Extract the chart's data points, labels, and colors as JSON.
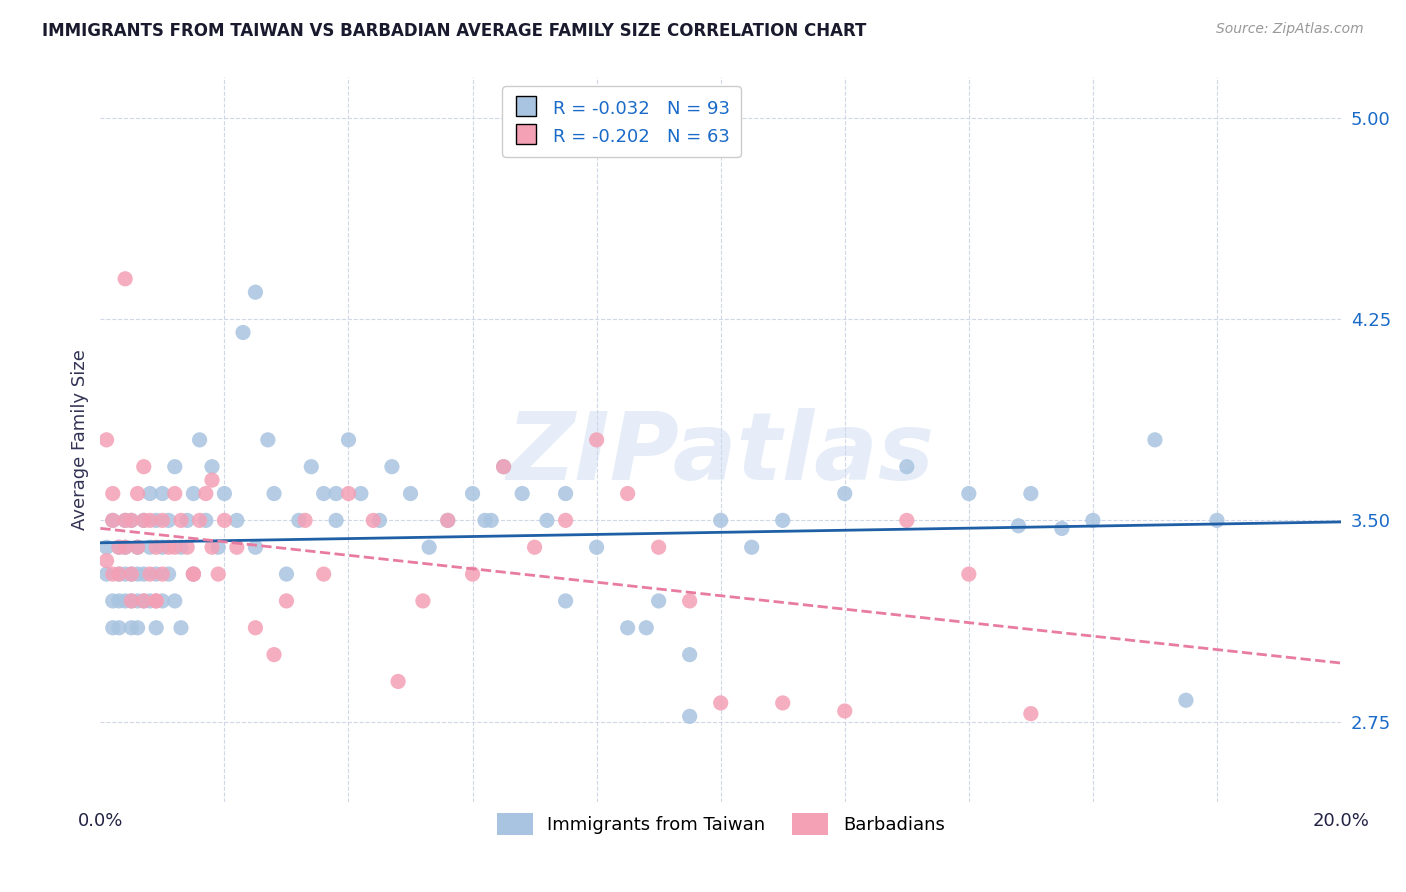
{
  "title": "IMMIGRANTS FROM TAIWAN VS BARBADIAN AVERAGE FAMILY SIZE CORRELATION CHART",
  "source": "Source: ZipAtlas.com",
  "ylabel": "Average Family Size",
  "xlim": [
    0.0,
    0.2
  ],
  "ylim": [
    2.45,
    5.15
  ],
  "yticks": [
    2.75,
    3.5,
    4.25,
    5.0
  ],
  "taiwan_R": -0.032,
  "taiwan_N": 93,
  "barbadian_R": -0.202,
  "barbadian_N": 63,
  "taiwan_color": "#a8c4e0",
  "barbadian_color": "#f4a0b5",
  "taiwan_line_color": "#1f5fa6",
  "barbadian_line_color": "#e87ca0",
  "background_color": "#ffffff",
  "grid_color": "#d0d8e8",
  "watermark": "ZIPatlas",
  "taiwan_x": [
    0.001,
    0.001,
    0.002,
    0.002,
    0.002,
    0.003,
    0.003,
    0.003,
    0.003,
    0.004,
    0.004,
    0.004,
    0.004,
    0.005,
    0.005,
    0.005,
    0.005,
    0.006,
    0.006,
    0.006,
    0.006,
    0.007,
    0.007,
    0.007,
    0.008,
    0.008,
    0.008,
    0.009,
    0.009,
    0.009,
    0.01,
    0.01,
    0.01,
    0.011,
    0.011,
    0.012,
    0.012,
    0.013,
    0.013,
    0.014,
    0.015,
    0.015,
    0.016,
    0.017,
    0.018,
    0.019,
    0.02,
    0.022,
    0.023,
    0.025,
    0.027,
    0.028,
    0.03,
    0.032,
    0.034,
    0.036,
    0.038,
    0.04,
    0.042,
    0.045,
    0.047,
    0.05,
    0.053,
    0.056,
    0.06,
    0.063,
    0.065,
    0.068,
    0.072,
    0.075,
    0.08,
    0.085,
    0.09,
    0.095,
    0.1,
    0.105,
    0.11,
    0.12,
    0.13,
    0.14,
    0.15,
    0.16,
    0.17,
    0.175,
    0.18,
    0.148,
    0.155,
    0.062,
    0.075,
    0.088,
    0.095,
    0.025,
    0.038
  ],
  "taiwan_y": [
    3.3,
    3.4,
    3.2,
    3.5,
    3.1,
    3.3,
    3.4,
    3.2,
    3.1,
    3.3,
    3.5,
    3.2,
    3.4,
    3.3,
    3.1,
    3.5,
    3.2,
    3.4,
    3.3,
    3.2,
    3.1,
    3.5,
    3.3,
    3.2,
    3.4,
    3.6,
    3.2,
    3.5,
    3.3,
    3.1,
    3.4,
    3.2,
    3.6,
    3.3,
    3.5,
    3.7,
    3.2,
    3.4,
    3.1,
    3.5,
    3.3,
    3.6,
    3.8,
    3.5,
    3.7,
    3.4,
    3.6,
    3.5,
    4.2,
    3.4,
    3.8,
    3.6,
    3.3,
    3.5,
    3.7,
    3.6,
    3.5,
    3.8,
    3.6,
    3.5,
    3.7,
    3.6,
    3.4,
    3.5,
    3.6,
    3.5,
    3.7,
    3.6,
    3.5,
    3.6,
    3.4,
    3.1,
    3.2,
    3.0,
    3.5,
    3.4,
    3.5,
    3.6,
    3.7,
    3.6,
    3.6,
    3.5,
    3.8,
    2.83,
    3.5,
    3.48,
    3.47,
    3.5,
    3.2,
    3.1,
    2.77,
    4.35,
    3.6
  ],
  "barbadian_x": [
    0.001,
    0.001,
    0.002,
    0.002,
    0.002,
    0.003,
    0.003,
    0.004,
    0.004,
    0.005,
    0.005,
    0.005,
    0.006,
    0.006,
    0.007,
    0.007,
    0.008,
    0.008,
    0.009,
    0.009,
    0.01,
    0.01,
    0.011,
    0.012,
    0.013,
    0.014,
    0.015,
    0.016,
    0.017,
    0.018,
    0.019,
    0.02,
    0.022,
    0.025,
    0.028,
    0.03,
    0.033,
    0.036,
    0.04,
    0.044,
    0.048,
    0.052,
    0.056,
    0.06,
    0.065,
    0.07,
    0.075,
    0.08,
    0.085,
    0.09,
    0.095,
    0.1,
    0.11,
    0.12,
    0.13,
    0.14,
    0.15,
    0.009,
    0.012,
    0.015,
    0.018,
    0.004,
    0.007
  ],
  "barbadian_y": [
    3.35,
    3.8,
    3.5,
    3.6,
    3.3,
    3.4,
    3.3,
    3.5,
    3.4,
    3.3,
    3.5,
    3.2,
    3.4,
    3.6,
    3.5,
    3.7,
    3.3,
    3.5,
    3.4,
    3.2,
    3.3,
    3.5,
    3.4,
    3.6,
    3.5,
    3.4,
    3.3,
    3.5,
    3.6,
    3.4,
    3.3,
    3.5,
    3.4,
    3.1,
    3.0,
    3.2,
    3.5,
    3.3,
    3.6,
    3.5,
    2.9,
    3.2,
    3.5,
    3.3,
    3.7,
    3.4,
    3.5,
    3.8,
    3.6,
    3.4,
    3.2,
    2.82,
    2.82,
    2.79,
    3.5,
    3.3,
    2.78,
    3.2,
    3.4,
    3.3,
    3.65,
    4.4,
    3.2
  ]
}
